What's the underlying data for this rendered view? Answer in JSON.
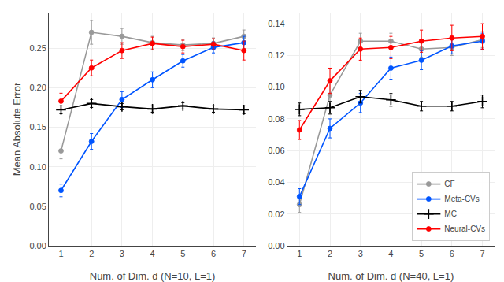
{
  "chart_data": [
    {
      "type": "line",
      "x": [
        1,
        2,
        3,
        4,
        5,
        6,
        7
      ],
      "xlabel": "Num. of Dim. d (N=10, L=1)",
      "ylabel": "Mean Absolute Error",
      "xlim": [
        0.6,
        7.4
      ],
      "xticks": [
        1,
        2,
        3,
        4,
        5,
        6,
        7
      ],
      "ylim": [
        0.0,
        0.295
      ],
      "yticks": [
        {
          "value": 0,
          "label": "0.00"
        },
        0.05,
        {
          "value": 0.1,
          "label": "0.10"
        },
        0.15,
        {
          "value": 0.2,
          "label": "0.20"
        },
        0.25
      ],
      "grid": true,
      "series": [
        {
          "name": "CF",
          "color": "#999999",
          "marker": "circle",
          "values": [
            0.12,
            0.27,
            0.265,
            0.257,
            0.254,
            0.256,
            0.265
          ],
          "errors": [
            0.01,
            0.015,
            0.01,
            0.008,
            0.007,
            0.007,
            0.008
          ]
        },
        {
          "name": "Meta-CVs",
          "color": "#0055ff",
          "marker": "circle",
          "values": [
            0.07,
            0.132,
            0.185,
            0.21,
            0.234,
            0.251,
            0.257
          ],
          "errors": [
            0.008,
            0.01,
            0.01,
            0.01,
            0.008,
            0.007,
            0.008
          ]
        },
        {
          "name": "MC",
          "color": "#000000",
          "marker": "plus",
          "values": [
            0.172,
            0.18,
            0.176,
            0.173,
            0.177,
            0.173,
            0.172
          ],
          "errors": [
            0.005,
            0.005,
            0.004,
            0.004,
            0.004,
            0.004,
            0.005
          ]
        },
        {
          "name": "Neural-CVs",
          "color": "#ff0000",
          "marker": "circle",
          "values": [
            0.183,
            0.225,
            0.247,
            0.256,
            0.252,
            0.255,
            0.247
          ],
          "errors": [
            0.01,
            0.01,
            0.01,
            0.008,
            0.008,
            0.007,
            0.012
          ]
        }
      ]
    },
    {
      "type": "line",
      "x": [
        1,
        2,
        3,
        4,
        5,
        6,
        7
      ],
      "xlabel": "Num. of Dim. d (N=40, L=1)",
      "xlim": [
        0.6,
        7.4
      ],
      "xticks": [
        1,
        2,
        3,
        4,
        5,
        6,
        7
      ],
      "ylim": [
        0.0,
        0.147
      ],
      "yticks": [
        {
          "value": 0,
          "label": "0.00"
        },
        0.02,
        0.04,
        0.06,
        0.08,
        {
          "value": 0.1,
          "label": "0.10"
        },
        0.12,
        0.14
      ],
      "grid": true,
      "legend": "lower right",
      "series": [
        {
          "name": "CF",
          "color": "#999999",
          "marker": "circle",
          "values": [
            0.026,
            0.095,
            0.129,
            0.129,
            0.124,
            0.125,
            0.13
          ],
          "errors": [
            0.005,
            0.008,
            0.005,
            0.005,
            0.005,
            0.005,
            0.005
          ]
        },
        {
          "name": "Meta-CVs",
          "color": "#0055ff",
          "marker": "circle",
          "values": [
            0.031,
            0.074,
            0.09,
            0.112,
            0.117,
            0.126,
            0.129
          ],
          "errors": [
            0.005,
            0.006,
            0.006,
            0.007,
            0.006,
            0.005,
            0.005
          ]
        },
        {
          "name": "MC",
          "color": "#000000",
          "marker": "plus",
          "values": [
            0.086,
            0.087,
            0.094,
            0.092,
            0.088,
            0.088,
            0.091
          ],
          "errors": [
            0.004,
            0.004,
            0.004,
            0.004,
            0.003,
            0.003,
            0.004
          ]
        },
        {
          "name": "Neural-CVs",
          "color": "#ff0000",
          "marker": "circle",
          "values": [
            0.073,
            0.104,
            0.124,
            0.125,
            0.129,
            0.131,
            0.132
          ],
          "errors": [
            0.006,
            0.008,
            0.007,
            0.007,
            0.007,
            0.008,
            0.008
          ]
        }
      ]
    }
  ]
}
